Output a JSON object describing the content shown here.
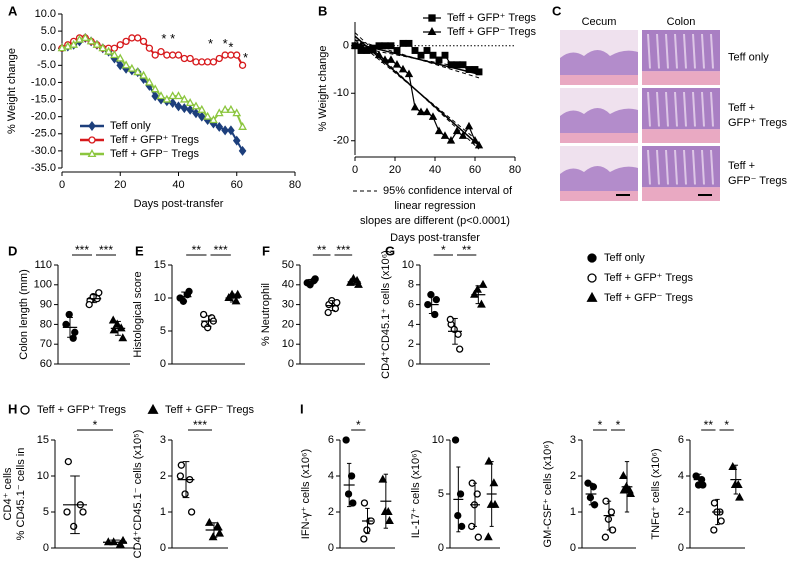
{
  "chart_data": [
    {
      "type": "line",
      "label": "A",
      "xlabel": "Days post-transfer",
      "ylabel": "% Weight change",
      "xlim": [
        0,
        80
      ],
      "xticks": [
        0,
        20,
        40,
        60,
        80
      ],
      "ylim": [
        -35,
        10
      ],
      "yticks": [
        {
          "value": 10,
          "label": "10.0"
        },
        {
          "value": 5,
          "label": "5.0"
        },
        {
          "value": 0,
          "label": "0.0"
        },
        {
          "value": -5,
          "label": "-5.0"
        },
        {
          "value": -10,
          "label": "-10.0"
        },
        {
          "value": -15,
          "label": "-15.0"
        },
        {
          "value": -20,
          "label": "-20.0"
        },
        {
          "value": -25,
          "label": "-25.0"
        },
        {
          "value": -30,
          "label": "-30.0"
        },
        {
          "value": -35,
          "label": "-35.0"
        }
      ],
      "legend": "lower left",
      "x": [
        0,
        2,
        4,
        6,
        8,
        10,
        12,
        14,
        16,
        18,
        20,
        22,
        24,
        26,
        28,
        30,
        32,
        34,
        36,
        38,
        40,
        42,
        44,
        46,
        48,
        50,
        52,
        54,
        56,
        58,
        60,
        62
      ],
      "series": [
        {
          "name": "Teff only",
          "color": "#1d3f7c",
          "marker": "diamond",
          "values": [
            0,
            0.5,
            1,
            2,
            3,
            2,
            1,
            0,
            -1,
            -3,
            -5,
            -6,
            -6.5,
            -7,
            -9,
            -11,
            -14,
            -15,
            -15.5,
            -16,
            -17,
            -17.5,
            -18,
            -19,
            -20,
            -21,
            -22,
            -23,
            -24,
            -24,
            -27,
            -30
          ]
        },
        {
          "name": "Teff + GFP⁺ Tregs",
          "color": "#d7191c",
          "marker": "circle-open",
          "values": [
            0,
            1,
            2,
            3,
            3,
            2,
            1,
            0,
            0,
            0,
            1,
            2,
            3,
            3,
            2,
            0,
            -2,
            -1,
            -2,
            -2,
            -2,
            -3,
            -3,
            -4,
            -4,
            -4,
            -4,
            -3,
            -2,
            -2,
            -2,
            -5
          ]
        },
        {
          "name": "Teff + GFP⁻ Tregs",
          "color": "#8cc63f",
          "marker": "triangle-open",
          "values": [
            0,
            0.5,
            1,
            2.5,
            3,
            2,
            1,
            0,
            -1,
            -2,
            -3,
            -5,
            -6,
            -7,
            -8,
            -10,
            -12,
            -14,
            -15,
            -14,
            -14,
            -15,
            -16,
            -17,
            -18,
            -20,
            -21,
            -19,
            -18,
            -18,
            -19,
            -23
          ]
        }
      ],
      "annotations": [
        {
          "x": 35,
          "y": 2.5,
          "text": "*"
        },
        {
          "x": 38,
          "y": 2.5,
          "text": "*"
        },
        {
          "x": 51,
          "y": 1,
          "text": "*"
        },
        {
          "x": 56,
          "y": 1,
          "text": "*"
        },
        {
          "x": 58,
          "y": 0,
          "text": "*"
        },
        {
          "x": 63,
          "y": -3,
          "text": "*"
        }
      ]
    },
    {
      "type": "regression",
      "label": "B",
      "xlabel": "Days post-transfer",
      "ylabel": "% Weight change",
      "xlim": [
        0,
        80
      ],
      "xticks": [
        0,
        20,
        40,
        60,
        80
      ],
      "ylim": [
        -23,
        5
      ],
      "yticks": [
        0,
        -10,
        -20
      ],
      "legend": "upper right",
      "x": [
        0,
        3,
        6,
        9,
        12,
        15,
        18,
        21,
        24,
        27,
        30,
        33,
        36,
        39,
        42,
        45,
        48,
        51,
        54,
        57,
        60,
        62
      ],
      "series": [
        {
          "name": "Teff + GFP⁺ Tregs",
          "color": "#000000",
          "marker": "square",
          "values": [
            0,
            -1,
            -1,
            -0.5,
            0,
            0,
            0,
            -1,
            0.5,
            0.5,
            -1,
            -2,
            -1,
            -2,
            -3,
            -2,
            -4,
            -4,
            -4,
            -5,
            -5,
            -5.5
          ],
          "fit": {
            "x": [
              0,
              62
            ],
            "values": [
              0.5,
              -6
            ]
          }
        },
        {
          "name": "Teff + GFP⁻ Tregs",
          "color": "#000000",
          "marker": "triangle",
          "values": [
            0,
            0,
            -1,
            -1,
            -2,
            -3,
            -3,
            -4,
            -5,
            -6,
            -13,
            -14,
            -14,
            -15,
            -18,
            -19,
            -20,
            -18,
            -19,
            -17,
            -20,
            -21
          ],
          "fit": {
            "x": [
              0,
              62
            ],
            "values": [
              2,
              -21
            ]
          }
        }
      ],
      "notes": [
        "95% confidence interval of",
        "linear regression",
        "slopes are different (p<0.0001)"
      ]
    },
    {
      "type": "images",
      "label": "C",
      "columns": [
        "Cecum",
        "Colon"
      ],
      "rows": [
        [
          "Teff only"
        ],
        [
          "Teff +",
          "GFP⁺ Tregs"
        ],
        [
          "Teff +",
          "GFP⁻ Tregs"
        ]
      ]
    },
    {
      "type": "dot",
      "label": "D",
      "ylabel": [
        "Colon length (mm)"
      ],
      "ylim": [
        60,
        110
      ],
      "yticks": [
        60,
        70,
        80,
        90,
        100,
        110
      ],
      "markers": [
        "circle",
        "circle-open",
        "triangle"
      ],
      "groups": [
        {
          "points": [
            80,
            73,
            85,
            76
          ],
          "mean": 78.5,
          "sd": 5
        },
        {
          "points": [
            92,
            93,
            94,
            96,
            90
          ],
          "mean": 93,
          "sd": 2
        },
        {
          "points": [
            77,
            78,
            80,
            73,
            82
          ],
          "mean": 78,
          "sd": 3.5
        }
      ],
      "significance": [
        "***",
        "***"
      ]
    },
    {
      "type": "dot",
      "label": "E",
      "ylabel": [
        "Histological score"
      ],
      "ylim": [
        0,
        15
      ],
      "yticks": [
        0,
        5,
        10,
        15
      ],
      "markers": [
        "circle",
        "circle-open",
        "triangle"
      ],
      "groups": [
        {
          "points": [
            10,
            10.5,
            9.5,
            11
          ],
          "mean": 10.2,
          "sd": 0.7
        },
        {
          "points": [
            6,
            7,
            5.5,
            6.5,
            7.5
          ],
          "mean": 6.5,
          "sd": 0.8
        },
        {
          "points": [
            10,
            9.5,
            10.5,
            10.5
          ],
          "mean": 10,
          "sd": 0.6
        }
      ],
      "significance": [
        "**",
        "***"
      ]
    },
    {
      "type": "dot",
      "label": "F",
      "ylabel": [
        "% Neutrophil"
      ],
      "ylim": [
        0,
        50
      ],
      "yticks": [
        0,
        10,
        20,
        30,
        40,
        50
      ],
      "markers": [
        "circle",
        "circle-open",
        "triangle"
      ],
      "groups": [
        {
          "points": [
            41,
            42,
            40,
            43
          ],
          "mean": 41.5,
          "sd": 1.2
        },
        {
          "points": [
            30,
            28,
            32,
            31,
            26
          ],
          "mean": 29.5,
          "sd": 2.5
        },
        {
          "points": [
            41,
            42,
            43,
            40
          ],
          "mean": 41.5,
          "sd": 1.3
        }
      ],
      "significance": [
        "**",
        "***"
      ]
    },
    {
      "type": "dot",
      "label": "G",
      "ylabel": [
        "CD4⁺CD45.1⁺ cells (x10⁶)"
      ],
      "ylim": [
        0,
        10
      ],
      "yticks": [
        0,
        2,
        4,
        6,
        8,
        10
      ],
      "markers": [
        "circle",
        "circle-open",
        "triangle"
      ],
      "groups": [
        {
          "points": [
            6,
            5,
            7,
            6.5
          ],
          "mean": 6,
          "sd": 0.9
        },
        {
          "points": [
            4,
            3,
            3.5,
            1.5,
            4.5
          ],
          "mean": 3.3,
          "sd": 1.3
        },
        {
          "points": [
            7,
            6,
            7.5,
            8
          ],
          "mean": 7,
          "sd": 0.9
        }
      ],
      "significance": [
        "*",
        "**"
      ]
    },
    {
      "type": "legend",
      "series": [
        {
          "name": "Teff only",
          "marker": "circle"
        },
        {
          "name": "Teff + GFP⁺ Tregs",
          "marker": "circle-open"
        },
        {
          "name": "Teff + GFP⁻ Tregs",
          "marker": "triangle"
        }
      ]
    },
    {
      "type": "legend",
      "label": "H",
      "series": [
        {
          "name": "Teff + GFP⁺ Tregs",
          "marker": "circle-open"
        },
        {
          "name": "Teff + GFP⁻ Tregs",
          "marker": "triangle"
        }
      ]
    },
    {
      "type": "dot",
      "ylabel": [
        "% CD45.1⁻ cells in",
        "CD4⁺ cells"
      ],
      "ylim": [
        0,
        15
      ],
      "yticks": [
        0,
        5,
        10,
        15
      ],
      "markers": [
        "circle-open",
        "triangle"
      ],
      "groups": [
        {
          "points": [
            12,
            6,
            3,
            5,
            5
          ],
          "mean": 6,
          "sd": 4
        },
        {
          "points": [
            0.8,
            0.5,
            0.8,
            1
          ],
          "mean": 0.8,
          "sd": 0.3
        }
      ],
      "significance": [
        "*"
      ]
    },
    {
      "type": "dot",
      "ylabel": [
        "CD4⁺CD45.1⁻ cells (x10⁵)"
      ],
      "ylim": [
        0,
        3
      ],
      "yticks": [
        0,
        1,
        2,
        3
      ],
      "markers": [
        "circle-open",
        "triangle"
      ],
      "groups": [
        {
          "points": [
            2.3,
            1.9,
            1.5,
            1,
            2
          ],
          "mean": 1.9,
          "sd": 0.5
        },
        {
          "points": [
            0.7,
            0.6,
            0.3,
            0.4
          ],
          "mean": 0.5,
          "sd": 0.2
        }
      ],
      "significance": [
        "***"
      ]
    },
    {
      "type": "dot",
      "label": "I",
      "ylabel": [
        "IFN-γ⁺ cells (x10⁶)"
      ],
      "ylim": [
        0,
        6
      ],
      "yticks": [
        0,
        2,
        4,
        6
      ],
      "markers": [
        "circle",
        "circle-open",
        "triangle"
      ],
      "groups": [
        {
          "points": [
            6,
            4,
            3,
            2.5
          ],
          "mean": 3.5,
          "sd": 1.2
        },
        {
          "points": [
            2.5,
            1.5,
            1,
            1.5,
            0.5
          ],
          "mean": 1.5,
          "sd": 0.7
        },
        {
          "points": [
            3.8,
            2,
            2,
            1.5
          ],
          "mean": 2.6,
          "sd": 1.5
        }
      ],
      "significance": [
        "*",
        null
      ]
    },
    {
      "type": "dot",
      "ylabel": [
        "IL-17⁺ cells (x10⁶)"
      ],
      "ylim": [
        0,
        10
      ],
      "yticks": [
        0,
        5,
        10
      ],
      "markers": [
        "circle",
        "circle-open",
        "triangle"
      ],
      "groups": [
        {
          "points": [
            10,
            5,
            3,
            2
          ],
          "mean": 4.5,
          "sd": 3
        },
        {
          "points": [
            6,
            5,
            4,
            1,
            2
          ],
          "mean": 4,
          "sd": 2
        },
        {
          "points": [
            8,
            6,
            4,
            4,
            1
          ],
          "mean": 5,
          "sd": 3
        }
      ],
      "significance": [
        null,
        null
      ]
    },
    {
      "type": "dot",
      "ylabel": [
        "GM-CSF⁺ cells (x10⁶)"
      ],
      "ylim": [
        0,
        3
      ],
      "yticks": [
        0,
        1,
        2,
        3
      ],
      "markers": [
        "circle",
        "circle-open",
        "triangle"
      ],
      "groups": [
        {
          "points": [
            1.8,
            1.7,
            1.4,
            1.2
          ],
          "mean": 1.5,
          "sd": 0.3
        },
        {
          "points": [
            1.3,
            1,
            0.8,
            0.5,
            0.3
          ],
          "mean": 0.9,
          "sd": 0.4
        },
        {
          "points": [
            1.6,
            1.6,
            1.7,
            1.5,
            2
          ],
          "mean": 1.7,
          "sd": 0.7
        }
      ],
      "significance": [
        "*",
        "*"
      ]
    },
    {
      "type": "dot",
      "ylabel": [
        "TNFα⁺ cells (x10⁶)"
      ],
      "ylim": [
        0,
        6
      ],
      "yticks": [
        0,
        2,
        4,
        6
      ],
      "markers": [
        "circle",
        "circle-open",
        "triangle"
      ],
      "groups": [
        {
          "points": [
            4,
            3.8,
            3.5,
            3.5
          ],
          "mean": 3.8,
          "sd": 0.3
        },
        {
          "points": [
            2.5,
            2,
            2,
            1.5,
            1
          ],
          "mean": 2,
          "sd": 0.7
        },
        {
          "points": [
            4.5,
            3.5,
            3.5,
            2.8
          ],
          "mean": 3.8,
          "sd": 0.8
        }
      ],
      "significance": [
        "**",
        "*"
      ]
    }
  ]
}
